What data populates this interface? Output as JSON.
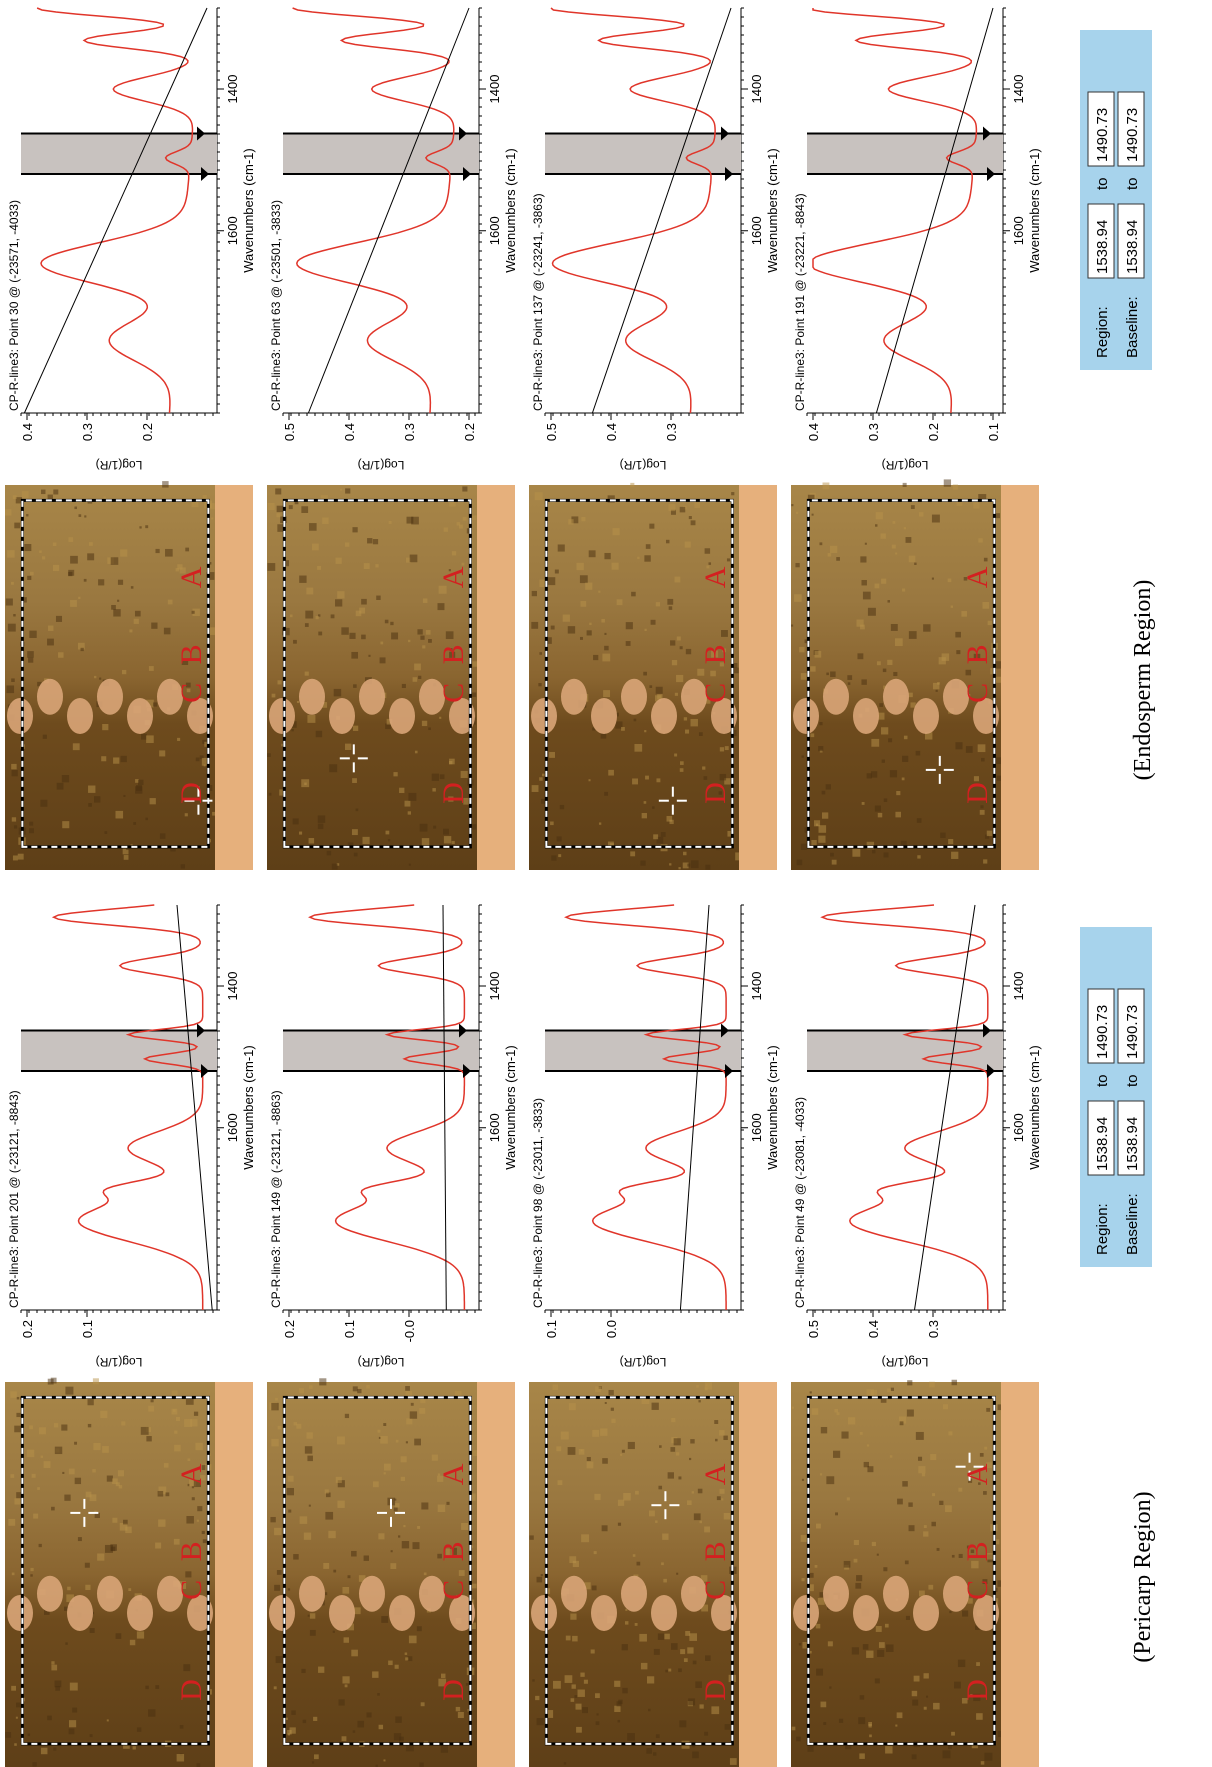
{
  "pericarp": {
    "caption": "(Pericarp Region)",
    "panels": [
      {
        "image_labels": [
          "D",
          "C",
          "B",
          "A"
        ],
        "spectrum": {
          "title": "CP-R-line3: Point 201 @ (-23121, -8843)",
          "y_label": "Log(1/R)",
          "x_label": "Wavenumbers (cm-1)",
          "xticks": [
            "1600",
            "1400"
          ],
          "yticks": [
            "0.2",
            "0.1"
          ]
        }
      },
      {
        "image_labels": [
          "D",
          "C",
          "B",
          "A"
        ],
        "spectrum": {
          "title": "CP-R-line3: Point 149 @ (-23121, -8863)",
          "y_label": "Log(1/R)",
          "x_label": "Wavenumbers (cm-1)",
          "xticks": [
            "1600",
            "1400"
          ],
          "yticks": [
            "0.2",
            "0.1",
            "-0.0"
          ]
        }
      },
      {
        "image_labels": [
          "D",
          "C",
          "B",
          "A"
        ],
        "spectrum": {
          "title": "CP-R-line3: Point 98 @ (-23011, -3833)",
          "y_label": "Log(1/R)",
          "x_label": "Wavenumbers (cm-1)",
          "xticks": [
            "1600",
            "1400"
          ],
          "yticks": [
            "0.1",
            "0.0"
          ]
        }
      },
      {
        "image_labels": [
          "D",
          "C",
          "B",
          "A"
        ],
        "spectrum": {
          "title": "CP-R-line3: Point 49 @ (-23081, -4033)",
          "y_label": "Log(1/R)",
          "x_label": "Wavenumbers (cm-1)",
          "xticks": [
            "1600",
            "1400"
          ],
          "yticks": [
            "0.5",
            "0.4",
            "0.3"
          ]
        }
      }
    ],
    "region_box": {
      "rows": [
        [
          "Region:",
          "1538.94",
          "to",
          "1490.73"
        ],
        [
          "Baseline:",
          "1538.94",
          "to",
          "1490.73"
        ]
      ]
    }
  },
  "endosperm": {
    "caption": "(Endosperm Region)",
    "panels": [
      {
        "image_labels": [
          "D",
          "C",
          "B",
          "A"
        ],
        "spectrum": {
          "title": "CP-R-line3: Point 30 @ (-23571, -4033)",
          "y_label": "Log(1/R)",
          "x_label": "Wavenumbers (cm-1)",
          "xticks": [
            "1600",
            "1400"
          ],
          "yticks": [
            "0.4",
            "0.3",
            "0.2"
          ]
        }
      },
      {
        "image_labels": [
          "D",
          "C",
          "B",
          "A"
        ],
        "spectrum": {
          "title": "CP-R-line3: Point 63 @ (-23501, -3833)",
          "y_label": "Log(1/R)",
          "x_label": "Wavenumbers (cm-1)",
          "xticks": [
            "1600",
            "1400"
          ],
          "yticks": [
            "0.5",
            "0.4",
            "0.3",
            "0.2"
          ]
        }
      },
      {
        "image_labels": [
          "D",
          "C",
          "B",
          "A"
        ],
        "spectrum": {
          "title": "CP-R-line3: Point 137 @ (-23241, -3863)",
          "y_label": "Log(1/R)",
          "x_label": "Wavenumbers (cm-1)",
          "xticks": [
            "1600",
            "1400"
          ],
          "yticks": [
            "0.5",
            "0.4",
            "0.3"
          ]
        }
      },
      {
        "image_labels": [
          "D",
          "C",
          "B",
          "A"
        ],
        "spectrum": {
          "title": "CP-R-line3: Point 191 @ (-23221, -8843)",
          "y_label": "Log(1/R)",
          "x_label": "Wavenumbers (cm-1)",
          "xticks": [
            "1600",
            "1400"
          ],
          "yticks": [
            "0.4",
            "0.3",
            "0.2",
            "0.1"
          ]
        }
      }
    ],
    "region_box": {
      "rows": [
        [
          "Region:",
          "1538.94",
          "to",
          "1490.73"
        ],
        [
          "Baseline:",
          "1538.94",
          "to",
          "1490.73"
        ]
      ]
    }
  }
}
